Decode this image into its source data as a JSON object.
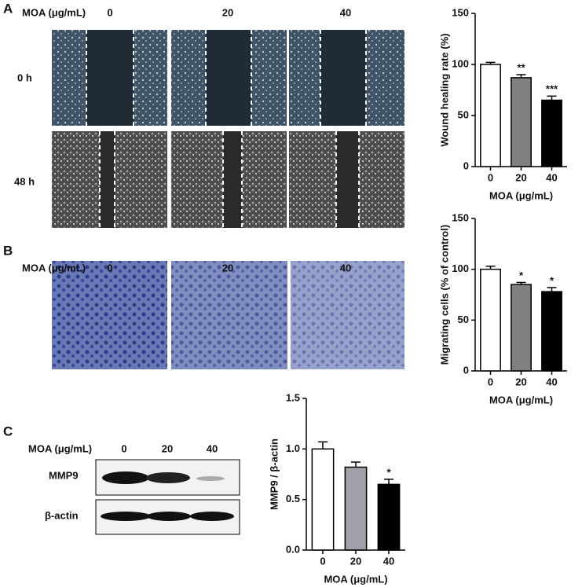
{
  "panel_labels": [
    "A",
    "B",
    "C"
  ],
  "panel_a": {
    "treatment_label": "MOA (μg/mL)",
    "doses": [
      "0",
      "20",
      "40"
    ],
    "times": [
      "0 h",
      "48 h"
    ]
  },
  "panel_b": {
    "treatment_label": "MOA (μg/mL)",
    "doses": [
      "0",
      "20",
      "40"
    ]
  },
  "panel_c": {
    "treatment_label": "MOA (μg/mL)",
    "doses": [
      "0",
      "20",
      "40"
    ],
    "bands": [
      "MMP9",
      "β-actin"
    ]
  },
  "chart_data": [
    {
      "type": "bar",
      "ylabel": "Wound healing rate (%)",
      "xlabel": "MOA (μg/mL)",
      "categories": [
        "0",
        "20",
        "40"
      ],
      "values": [
        100,
        87,
        65
      ],
      "errors": [
        2,
        3,
        4
      ],
      "significance": [
        null,
        "**",
        "***"
      ],
      "colors": [
        "#ffffff",
        "#808080",
        "#000000"
      ],
      "ylim": [
        0,
        150
      ],
      "yticks": [
        0,
        50,
        100,
        150
      ]
    },
    {
      "type": "bar",
      "ylabel": "Migrating cells (% of control)",
      "xlabel": "MOA (μg/mL)",
      "categories": [
        "0",
        "20",
        "40"
      ],
      "values": [
        100,
        85,
        78
      ],
      "errors": [
        3,
        2,
        4
      ],
      "significance": [
        null,
        "*",
        "*"
      ],
      "colors": [
        "#ffffff",
        "#808080",
        "#000000"
      ],
      "ylim": [
        0,
        150
      ],
      "yticks": [
        0,
        50,
        100,
        150
      ]
    },
    {
      "type": "bar",
      "ylabel": "MMP9 / β-actin",
      "xlabel": "MOA (μg/mL)",
      "categories": [
        "0",
        "20",
        "40"
      ],
      "values": [
        1.0,
        0.82,
        0.65
      ],
      "errors": [
        0.07,
        0.05,
        0.05
      ],
      "significance": [
        null,
        null,
        "*"
      ],
      "colors": [
        "#ffffff",
        "#a0a0a8",
        "#000000"
      ],
      "ylim": [
        0,
        1.5
      ],
      "yticks": [
        {
          "value": 0,
          "label": "0.0"
        },
        {
          "value": 0.5,
          "label": "0.5"
        },
        {
          "value": 1,
          "label": "1.0"
        },
        {
          "value": 1.5,
          "label": "1.5"
        }
      ]
    }
  ]
}
